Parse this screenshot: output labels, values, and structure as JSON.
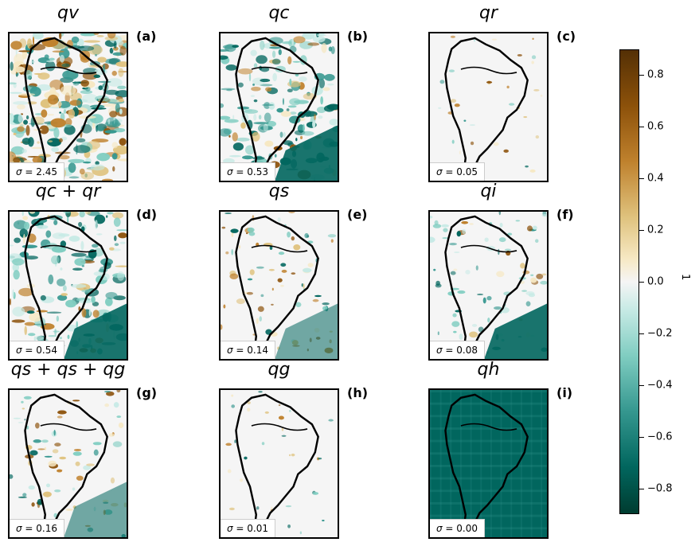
{
  "colors": {
    "positive": "#8c510a",
    "neutral": "#f5f5f5",
    "negative": "#01665e"
  },
  "panels": [
    {
      "title": "qv",
      "label": "(a)",
      "sigma": "2.45",
      "col": 0,
      "row": 0,
      "mode": "dense"
    },
    {
      "title": "qc",
      "label": "(b)",
      "sigma": "0.53",
      "col": 1,
      "row": 0,
      "mode": "teal"
    },
    {
      "title": "qr",
      "label": "(c)",
      "sigma": "0.05",
      "col": 2,
      "row": 0,
      "mode": "sparse"
    },
    {
      "title": "qc + qr",
      "label": "(d)",
      "sigma": "0.54",
      "col": 0,
      "row": 1,
      "mode": "teal"
    },
    {
      "title": "qs",
      "label": "(e)",
      "sigma": "0.14",
      "col": 1,
      "row": 1,
      "mode": "light"
    },
    {
      "title": "qi",
      "label": "(f)",
      "sigma": "0.08",
      "col": 2,
      "row": 1,
      "mode": "tealpatch"
    },
    {
      "title": "qs + qs + qg",
      "label": "(g)",
      "sigma": "0.16",
      "col": 0,
      "row": 2,
      "mode": "light"
    },
    {
      "title": "qg",
      "label": "(h)",
      "sigma": "0.01",
      "col": 1,
      "row": 2,
      "mode": "sparse"
    },
    {
      "title": "qh",
      "label": "(i)",
      "sigma": "0.00",
      "col": 2,
      "row": 2,
      "mode": "full"
    }
  ],
  "colorbar": {
    "ticks": [
      "0.8",
      "0.6",
      "0.4",
      "0.2",
      "0.0",
      "−0.2",
      "−0.4",
      "−0.6",
      "−0.8"
    ],
    "tick_values": [
      0.8,
      0.6,
      0.4,
      0.2,
      0.0,
      -0.2,
      -0.4,
      -0.6,
      -0.8
    ],
    "range": [
      -0.9,
      0.9
    ],
    "label": "1"
  },
  "chart_data": {
    "type": "heatmap",
    "panels": [
      "qv",
      "qc",
      "qr",
      "qc + qr",
      "qs",
      "qi",
      "qs + qs + qg",
      "qg",
      "qh"
    ],
    "sigma": [
      2.45,
      0.53,
      0.05,
      0.54,
      0.14,
      0.08,
      0.16,
      0.01,
      0.0
    ],
    "colorbar_range": [
      -0.9,
      0.9
    ]
  }
}
